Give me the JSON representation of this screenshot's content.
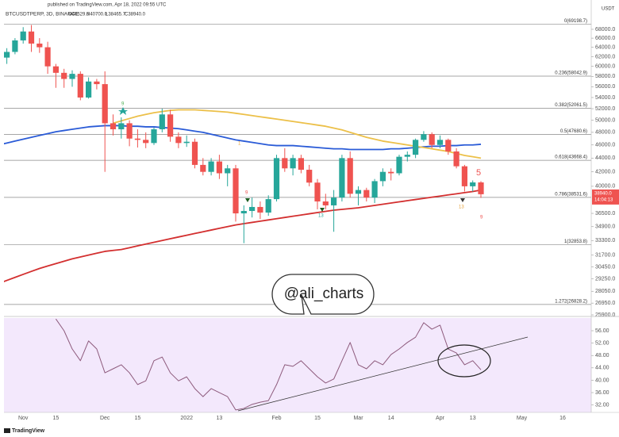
{
  "published": "published on TradingView.com, Apr 18, 2022 09:55 UTC",
  "footer": "TradingView",
  "watermark": "@ali_charts",
  "annotations": [
    "9",
    "1",
    "9",
    "13",
    "5",
    "13",
    "9"
  ],
  "chart_data": [
    {
      "type": "candlestick",
      "title": "BTCUSDTPERP, 3D, BINANCE",
      "ohlc_labels": [
        "O40529.6",
        "H40700.0",
        "L38465.7",
        "C38940.0"
      ],
      "y_unit": "USDT",
      "log_scale": true,
      "up_color": "#26a69a",
      "down_color": "#ef5350",
      "categories": [
        null,
        null,
        null,
        "Nov",
        null,
        null,
        null,
        "15",
        null,
        null,
        null,
        null,
        null,
        "Dec",
        null,
        null,
        null,
        "15",
        null,
        null,
        null,
        null,
        null,
        "2022",
        null,
        null,
        null,
        "13",
        null,
        null,
        null,
        null,
        null,
        null,
        "Feb",
        null,
        null,
        null,
        null,
        "15",
        null,
        null,
        null,
        null,
        "Mar",
        null,
        null,
        null,
        "14",
        null,
        null,
        null,
        null,
        null,
        "Apr",
        null,
        null,
        null,
        "13",
        null,
        null,
        null,
        null,
        null,
        "May",
        null,
        null,
        null,
        null,
        "16",
        null,
        null,
        null
      ],
      "open": [
        60800,
        61800,
        63000,
        65500,
        67500,
        64800,
        64000,
        60000,
        58700,
        57500,
        58500,
        54000,
        57000,
        56500,
        49500,
        48500,
        49500,
        47000,
        46800,
        46300,
        48500,
        51000,
        47300,
        46300,
        46500,
        43000,
        42000,
        43500,
        41800,
        42500,
        36500,
        36800,
        37300,
        36600,
        38300,
        44000,
        42500,
        44000,
        42300,
        40500,
        38000,
        37500,
        38500,
        44000,
        39000,
        39500,
        38500,
        40700,
        42000,
        41800,
        44200,
        44500,
        46800,
        47700,
        46000,
        46800,
        45000,
        42800,
        40000,
        40529.6,
        null,
        null,
        null,
        null,
        null,
        null,
        null,
        null,
        null,
        null,
        null,
        null,
        null
      ],
      "high": [
        62500,
        63800,
        66000,
        68500,
        69000,
        66000,
        65200,
        60500,
        59500,
        59200,
        59000,
        57800,
        57500,
        59000,
        51000,
        50500,
        50000,
        48500,
        48000,
        48800,
        52000,
        51800,
        48000,
        47500,
        47000,
        44000,
        44000,
        44500,
        43000,
        43000,
        37500,
        38500,
        38000,
        38800,
        44500,
        45500,
        44500,
        44500,
        43000,
        41000,
        39000,
        39500,
        44500,
        45000,
        40000,
        39800,
        41000,
        42500,
        42500,
        44500,
        45000,
        47000,
        48200,
        48000,
        47500,
        47000,
        45500,
        43000,
        40800,
        40700.0,
        null,
        null,
        null,
        null,
        null,
        null,
        null,
        null,
        null,
        null,
        null,
        null,
        null
      ],
      "low": [
        60000,
        60500,
        62500,
        64800,
        63000,
        62800,
        58500,
        55800,
        55800,
        56000,
        53500,
        53800,
        55500,
        42000,
        47500,
        47000,
        45800,
        45600,
        45500,
        46000,
        48000,
        46500,
        45500,
        45700,
        42500,
        41500,
        41500,
        41000,
        40000,
        35500,
        33000,
        36000,
        35800,
        36200,
        38000,
        42000,
        41500,
        41800,
        40000,
        37000,
        37000,
        34300,
        38000,
        38500,
        37500,
        38000,
        37800,
        40000,
        40800,
        41500,
        43500,
        44000,
        46500,
        45500,
        45500,
        44500,
        42500,
        39300,
        39300,
        38465.7,
        null,
        null,
        null,
        null,
        null,
        null,
        null,
        null,
        null,
        null,
        null,
        null,
        null
      ],
      "close": [
        61800,
        63000,
        65500,
        67500,
        64800,
        64000,
        60000,
        58700,
        57500,
        58500,
        54000,
        57000,
        56500,
        49500,
        48500,
        49500,
        47000,
        46800,
        46300,
        48500,
        51000,
        47300,
        46300,
        46500,
        43000,
        42000,
        43500,
        41800,
        42500,
        36500,
        36800,
        37300,
        36600,
        38300,
        44000,
        42500,
        44000,
        42300,
        40500,
        38000,
        37500,
        38500,
        44000,
        39000,
        39500,
        38500,
        40700,
        42000,
        41800,
        44200,
        44500,
        46800,
        47700,
        46000,
        46800,
        45000,
        42800,
        40000,
        40529.6,
        38940.0,
        null,
        null,
        null,
        null,
        null,
        null,
        null,
        null,
        null,
        null,
        null,
        null,
        null
      ],
      "overlays": [
        {
          "color": "#d32f2f",
          "values": [
            28800,
            29100,
            29400,
            29700,
            30000,
            30300,
            30550,
            30800,
            31050,
            31300,
            31500,
            31700,
            31900,
            32100,
            32200,
            32300,
            32500,
            32700,
            32900,
            33100,
            33300,
            33500,
            33700,
            33900,
            34100,
            34300,
            34500,
            34700,
            34900,
            35100,
            35250,
            35400,
            35550,
            35700,
            35850,
            36000,
            36150,
            36300,
            36450,
            36600,
            36750,
            36900,
            37000,
            37100,
            37200,
            37350,
            37500,
            37650,
            37800,
            37950,
            38100,
            38250,
            38400,
            38550,
            38700,
            38850,
            39000,
            39150,
            39300,
            39500,
            null,
            null,
            null,
            null,
            null,
            null,
            null,
            null,
            null,
            null,
            null,
            null,
            null
          ]
        },
        {
          "color": "#2a5bd7",
          "values": [
            46000,
            46300,
            46600,
            46900,
            47200,
            47500,
            47800,
            48100,
            48300,
            48500,
            48700,
            48900,
            49000,
            49100,
            49100,
            49100,
            49000,
            49000,
            48900,
            48900,
            48800,
            48700,
            48600,
            48400,
            48200,
            48000,
            47700,
            47400,
            47100,
            46800,
            46600,
            46400,
            46200,
            46000,
            45900,
            45900,
            45900,
            45800,
            45700,
            45600,
            45500,
            45400,
            45400,
            45300,
            45300,
            45300,
            45300,
            45300,
            45400,
            45400,
            45500,
            45600,
            45700,
            45800,
            45800,
            45900,
            45900,
            46000,
            46000,
            46100,
            null,
            null,
            null,
            null,
            null,
            null,
            null,
            null,
            null,
            null,
            null,
            null,
            null
          ]
        },
        {
          "color": "#ecc049",
          "values": [
            null,
            null,
            null,
            null,
            null,
            null,
            null,
            null,
            null,
            null,
            null,
            null,
            null,
            null,
            49500,
            49900,
            50300,
            50700,
            51000,
            51300,
            51500,
            51700,
            51800,
            51800,
            51800,
            51700,
            51600,
            51500,
            51400,
            51200,
            51000,
            50800,
            50600,
            50400,
            50200,
            50000,
            49800,
            49600,
            49400,
            49200,
            49000,
            48700,
            48400,
            48000,
            47600,
            47200,
            46900,
            46600,
            46400,
            46200,
            46000,
            45800,
            45600,
            45400,
            45200,
            45000,
            44700,
            44400,
            44200,
            44000,
            null,
            null,
            null,
            null,
            null,
            null,
            null,
            null,
            null,
            null,
            null,
            null,
            null
          ]
        }
      ],
      "fib_levels": [
        {
          "value": 69198.7,
          "label": "0(69198.7)"
        },
        {
          "value": 58042.9,
          "label": "0.236(58042.9)"
        },
        {
          "value": 52061.5,
          "label": "0.382(52061.5)"
        },
        {
          "value": 47680.6,
          "label": "0.5(47680.6)"
        },
        {
          "value": 43668.4,
          "label": "0.618(43668.4)"
        },
        {
          "value": 38531.6,
          "label": "0.786(38531.6)"
        },
        {
          "value": 32853.8,
          "label": "1(32853.8)"
        },
        {
          "value": 26828.2,
          "label": "1.272(26828.2)"
        }
      ],
      "last_price": {
        "value": 38940.0,
        "label": "38940.0"
      },
      "countdown": "14:04:13",
      "ylim": [
        25900,
        73100
      ],
      "yticks": [
        {
          "value": 68000,
          "label": "68000.0"
        },
        {
          "value": 66000,
          "label": "66000.0"
        },
        {
          "value": 64000,
          "label": "64000.0"
        },
        {
          "value": 62000,
          "label": "62000.0"
        },
        {
          "value": 60000,
          "label": "60000.0"
        },
        {
          "value": 58000,
          "label": "58000.0"
        },
        {
          "value": 56000,
          "label": "56000.0"
        },
        {
          "value": 54000,
          "label": "54000.0"
        },
        {
          "value": 52000,
          "label": "52000.0"
        },
        {
          "value": 50000,
          "label": "50000.0"
        },
        {
          "value": 48000,
          "label": "48000.0"
        },
        {
          "value": 46000,
          "label": "46000.0"
        },
        {
          "value": 44000,
          "label": "44000.0"
        },
        {
          "value": 42000,
          "label": "42000.0"
        },
        {
          "value": 40000,
          "label": "40000.0"
        },
        {
          "value": 36500,
          "label": "36500.0"
        },
        {
          "value": 34900,
          "label": "34900.0"
        },
        {
          "value": 33300,
          "label": "33300.0"
        },
        {
          "value": 31700,
          "label": "31700.0"
        },
        {
          "value": 30450,
          "label": "30450.0"
        },
        {
          "value": 29250,
          "label": "29250.0"
        },
        {
          "value": 28050,
          "label": "28050.0"
        },
        {
          "value": 26950,
          "label": "26950.0"
        },
        {
          "value": 25900,
          "label": "25900.0"
        }
      ]
    },
    {
      "type": "line",
      "color": "#8d5a7c",
      "background": "#f3e8fc",
      "values": [
        null,
        null,
        null,
        null,
        null,
        null,
        null,
        59.8,
        56,
        50.1,
        46.3,
        52.7,
        50.1,
        42.4,
        43.7,
        45,
        42.4,
        38.6,
        39.8,
        46.3,
        47.5,
        42.4,
        39.8,
        41.1,
        37.3,
        34.7,
        37.3,
        36,
        34.7,
        30.4,
        30.9,
        32.2,
        32.9,
        33.4,
        38.6,
        45,
        44.5,
        46.3,
        43.7,
        41.1,
        39.1,
        40.4,
        46.3,
        52.2,
        45,
        43.7,
        46.3,
        45,
        48.3,
        50.1,
        52.2,
        53.9,
        58.6,
        56.5,
        57.8,
        50.1,
        48.8,
        45,
        46.3,
        43.4,
        null,
        null,
        null,
        null,
        null,
        null,
        null,
        null,
        null,
        null,
        null,
        null,
        null
      ],
      "ylim": [
        29.6,
        60.1
      ],
      "yticks": [
        {
          "value": 56,
          "label": "56.00"
        },
        {
          "value": 52,
          "label": "52.00"
        },
        {
          "value": 48,
          "label": "48.00"
        },
        {
          "value": 44,
          "label": "44.00"
        },
        {
          "value": 40,
          "label": "40.00"
        },
        {
          "value": 36,
          "label": "36.00"
        },
        {
          "value": 32,
          "label": "32.00"
        }
      ]
    }
  ]
}
